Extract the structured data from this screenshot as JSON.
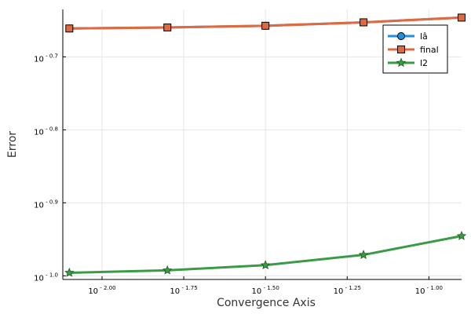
{
  "chart_data": {
    "type": "line",
    "title": "",
    "xlabel": "Convergence Axis",
    "ylabel": "Error",
    "x_scale": "log10",
    "y_scale": "log10",
    "xlim": [
      -2.12,
      -0.9
    ],
    "ylim": [
      -1.005,
      -0.635
    ],
    "x_ticks": [
      -2.0,
      -1.75,
      -1.5,
      -1.25,
      -1.0
    ],
    "x_tick_labels": [
      "10 - 2.00",
      "10 - 1.75",
      "10 - 1.50",
      "10 - 1.25",
      "10 - 1.00"
    ],
    "y_ticks": [
      -1.0,
      -0.9,
      -0.8,
      -0.7
    ],
    "y_tick_labels": [
      "10 - 1.0",
      "10 - 0.9",
      "10 - 0.8",
      "10 - 0.7"
    ],
    "grid": true,
    "legend_position": "top-right",
    "x": [
      -2.1,
      -1.8,
      -1.5,
      -1.2,
      -0.9
    ],
    "series": [
      {
        "name": "lâ",
        "marker": "circle",
        "color": "#1f8fe0",
        "values": [
          -0.6611,
          -0.6597,
          -0.6574,
          -0.6527,
          -0.6462
        ]
      },
      {
        "name": "final",
        "marker": "square",
        "color": "#e06a3f",
        "values": [
          -0.6611,
          -0.6597,
          -0.6574,
          -0.6527,
          -0.6462
        ]
      },
      {
        "name": "l2",
        "marker": "star",
        "color": "#3a9a45",
        "values": [
          -0.9958,
          -0.9925,
          -0.9854,
          -0.9713,
          -0.9454
        ]
      }
    ]
  }
}
